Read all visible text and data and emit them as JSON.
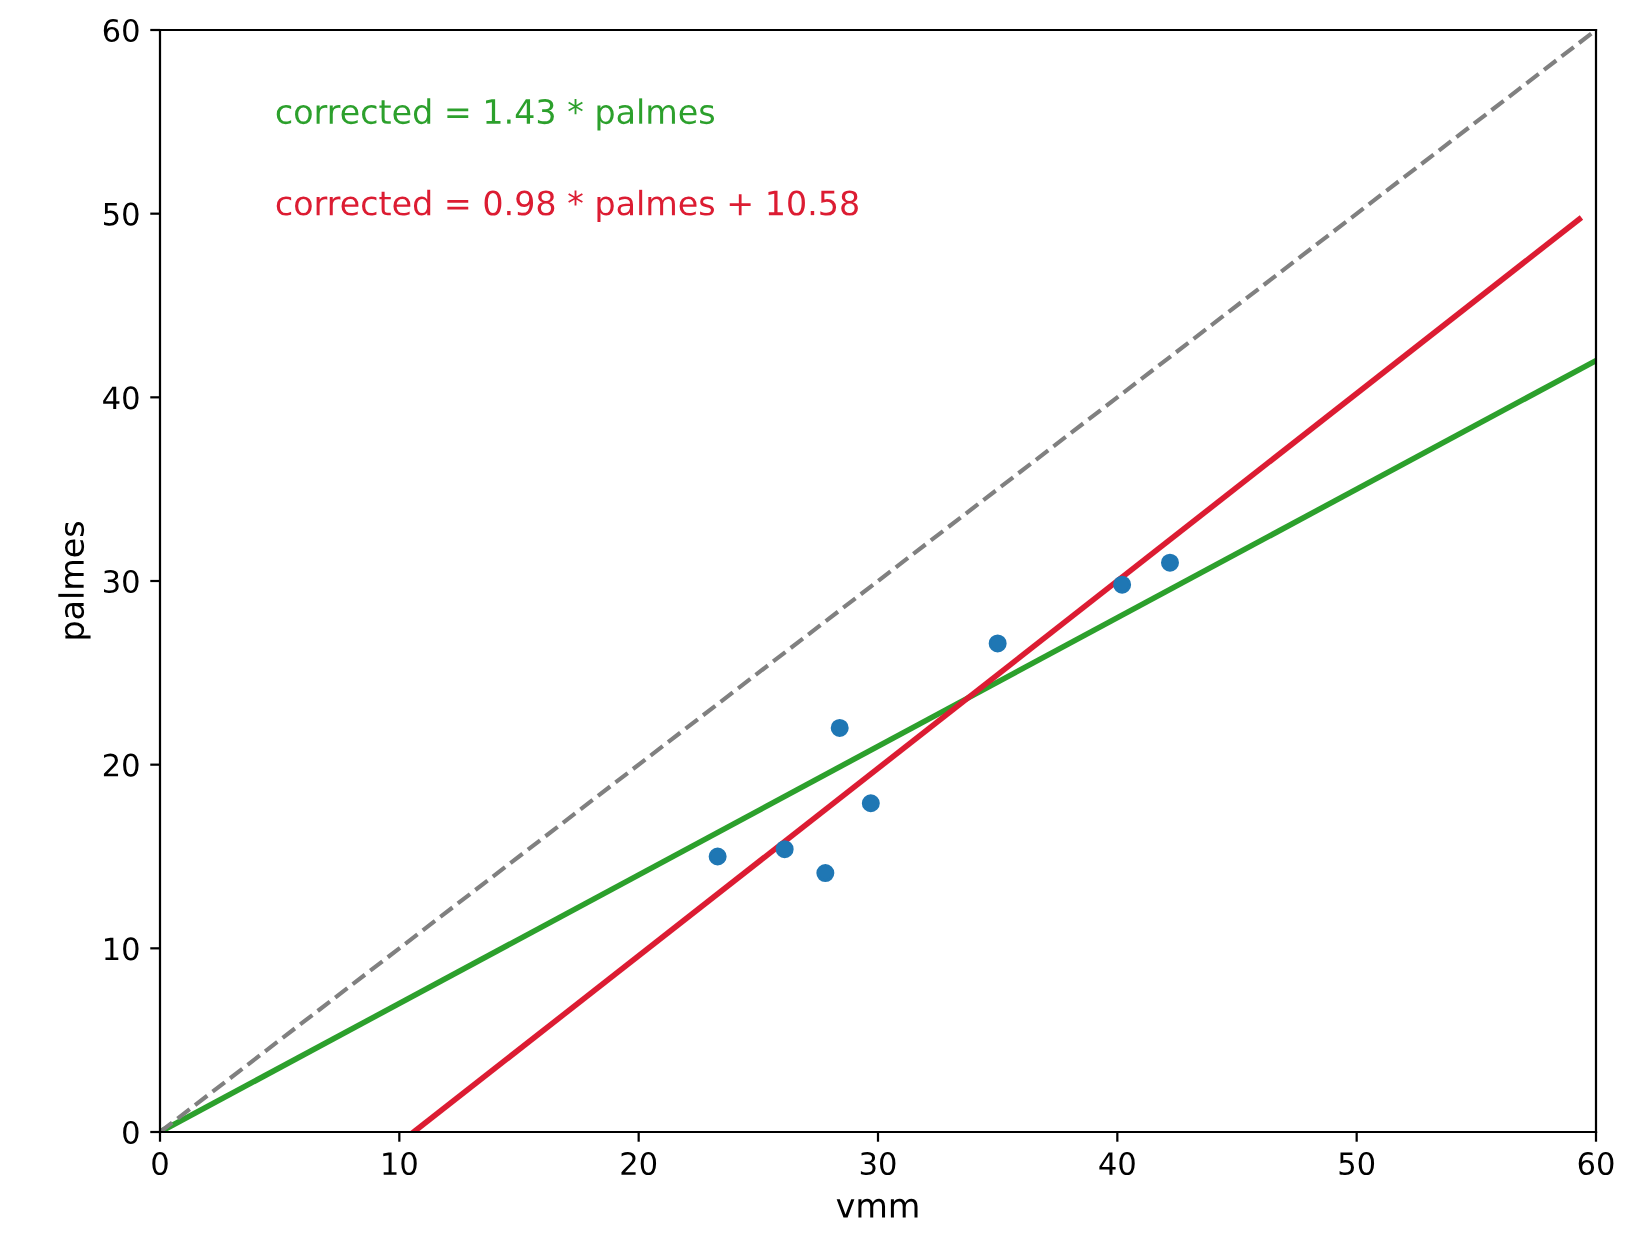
{
  "chart_data": {
    "type": "scatter",
    "xlabel": "vmm",
    "ylabel": "palmes",
    "xlim": [
      0,
      60
    ],
    "ylim": [
      0,
      60
    ],
    "xticks": [
      0,
      10,
      20,
      30,
      40,
      50,
      60
    ],
    "yticks": [
      0,
      10,
      20,
      30,
      40,
      50,
      60
    ],
    "grid": false,
    "legend": false,
    "annotations": [
      "corrected = 1.43 * palmes",
      "corrected = 0.98 * palmes + 10.58"
    ],
    "series": [
      {
        "color": "#1f77b4",
        "marker": "circle",
        "x": [
          23.3,
          26.1,
          27.8,
          28.4,
          29.7,
          35.0,
          40.2,
          42.2
        ],
        "values": [
          15.0,
          15.4,
          14.1,
          22.0,
          17.9,
          26.6,
          29.8,
          31.0
        ]
      },
      {
        "type": "line",
        "color": "#2ca02c",
        "line_style": "solid",
        "x": [
          0,
          60
        ],
        "values": [
          0,
          42
        ]
      },
      {
        "type": "line",
        "color": "#dc1c32",
        "line_style": "solid",
        "x": [
          10.6,
          59.3
        ],
        "values": [
          0,
          49.7
        ]
      },
      {
        "type": "line",
        "color": "#808080",
        "line_style": "dashed",
        "x": [
          0,
          60
        ],
        "values": [
          0,
          60
        ]
      }
    ]
  }
}
